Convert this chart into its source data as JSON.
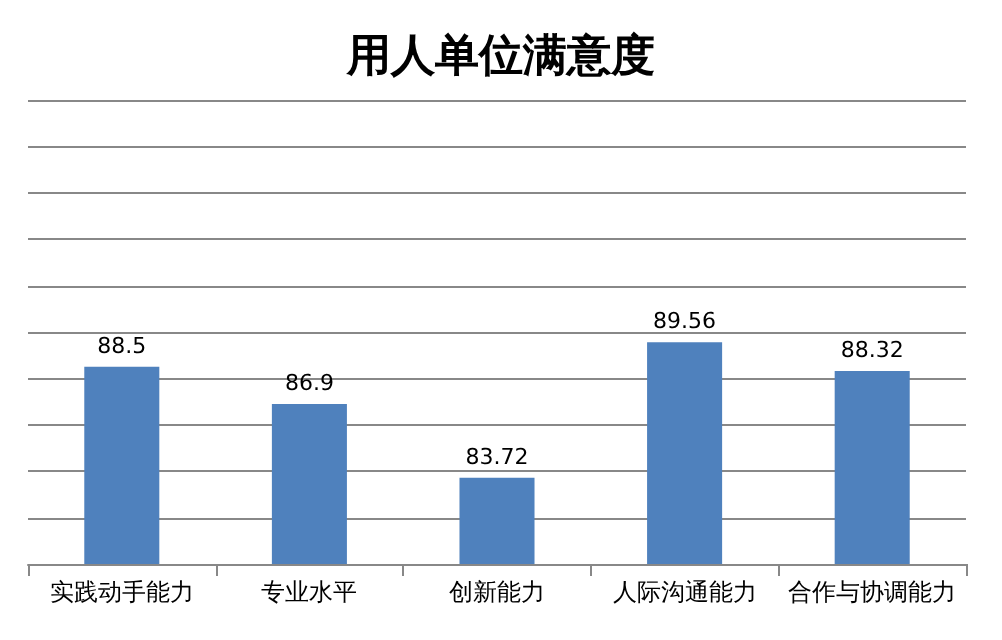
{
  "chart_data": {
    "type": "bar",
    "title": "用人单位满意度",
    "categories": [
      "实践动手能力",
      "专业水平",
      "创新能力",
      "人际沟通能力",
      "合作与协调能力"
    ],
    "values": [
      88.5,
      86.9,
      83.72,
      89.56,
      88.32
    ],
    "color": "#4f81bd",
    "ylim": [
      80,
      100
    ],
    "yticks": [
      80,
      82,
      84,
      86,
      88,
      90,
      92,
      94,
      96,
      98,
      100
    ],
    "tick_labels": "x",
    "grid": "y",
    "data_labels": true
  }
}
